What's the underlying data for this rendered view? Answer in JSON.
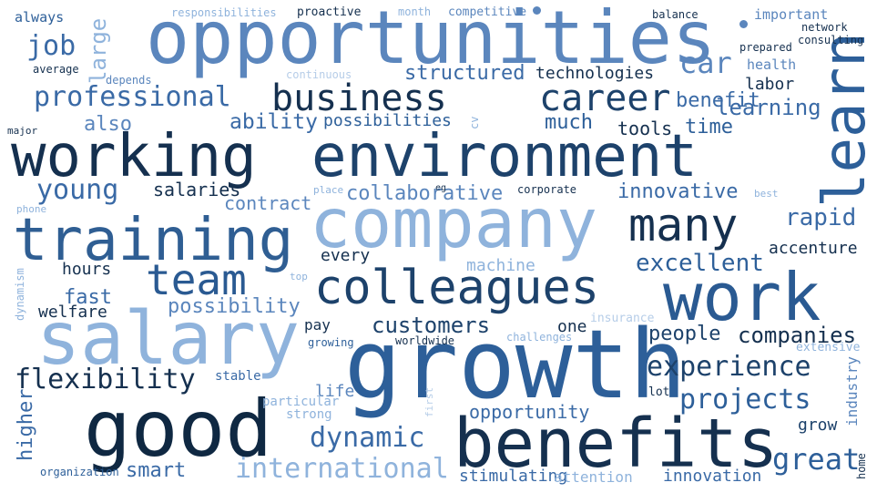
{
  "palette": [
    "#0f2a4a",
    "#1d4a7e",
    "#2f6aa6",
    "#5b8ec8",
    "#8db4dd",
    "#b9d3ee"
  ],
  "words": [
    {
      "id": "opportunities",
      "text": "opportunities",
      "color": "#5b86bd"
    },
    {
      "id": "working",
      "text": "working",
      "color": "#15304f"
    },
    {
      "id": "environment",
      "text": "environment",
      "color": "#1d426b"
    },
    {
      "id": "company",
      "text": "company",
      "color": "#8fb3dc"
    },
    {
      "id": "training",
      "text": "training",
      "color": "#2f5e93"
    },
    {
      "id": "salary",
      "text": "salary",
      "color": "#8fb3dc"
    },
    {
      "id": "growth",
      "text": "growth",
      "color": "#2d5f99"
    },
    {
      "id": "good",
      "text": "good",
      "color": "#0f2842"
    },
    {
      "id": "benefits",
      "text": "benefits",
      "color": "#15304f"
    },
    {
      "id": "work",
      "text": "work",
      "color": "#2a5a92"
    },
    {
      "id": "colleagues",
      "text": "colleagues",
      "color": "#1d426b"
    },
    {
      "id": "business",
      "text": "business",
      "color": "#15304f"
    },
    {
      "id": "career",
      "text": "career",
      "color": "#1d426b"
    },
    {
      "id": "learn",
      "text": "learn",
      "color": "#2d5f99"
    },
    {
      "id": "team",
      "text": "team",
      "color": "#2a5a92"
    },
    {
      "id": "many",
      "text": "many",
      "color": "#15304f"
    },
    {
      "id": "professional",
      "text": "professional",
      "color": "#3a6aa6"
    },
    {
      "id": "flexibility",
      "text": "flexibility",
      "color": "#15304f"
    },
    {
      "id": "experience",
      "text": "experience",
      "color": "#1d426b"
    },
    {
      "id": "projects",
      "text": "projects",
      "color": "#2d5f99"
    },
    {
      "id": "international",
      "text": "international",
      "color": "#8fb3dc"
    },
    {
      "id": "dynamic",
      "text": "dynamic",
      "color": "#3a6aa6"
    },
    {
      "id": "great",
      "text": "great",
      "color": "#2d5f99"
    },
    {
      "id": "young",
      "text": "young",
      "color": "#3a6aa6"
    },
    {
      "id": "job",
      "text": "job",
      "color": "#3a6aa6"
    },
    {
      "id": "large",
      "text": "large",
      "color": "#8fb3dc"
    },
    {
      "id": "always",
      "text": "always",
      "color": "#2d5f99"
    },
    {
      "id": "also",
      "text": "also",
      "color": "#5b86bd"
    },
    {
      "id": "car",
      "text": "car",
      "color": "#5b86bd"
    },
    {
      "id": "structured",
      "text": "structured",
      "color": "#3a6aa6"
    },
    {
      "id": "technologies",
      "text": "technologies",
      "color": "#15304f"
    },
    {
      "id": "benefit",
      "text": "benefit",
      "color": "#3a6aa6"
    },
    {
      "id": "labor",
      "text": "labor",
      "color": "#15304f"
    },
    {
      "id": "learning",
      "text": "learning",
      "color": "#3a6aa6"
    },
    {
      "id": "ability",
      "text": "ability",
      "color": "#3a6aa6"
    },
    {
      "id": "possibilities",
      "text": "possibilities",
      "color": "#2d5f99"
    },
    {
      "id": "much",
      "text": "much",
      "color": "#2d5f99"
    },
    {
      "id": "time",
      "text": "time",
      "color": "#2d5f99"
    },
    {
      "id": "tools",
      "text": "tools",
      "color": "#15304f"
    },
    {
      "id": "salaries",
      "text": "salaries",
      "color": "#15304f"
    },
    {
      "id": "collaborative",
      "text": "collaborative",
      "color": "#5b86bd"
    },
    {
      "id": "innovative",
      "text": "innovative",
      "color": "#3a6aa6"
    },
    {
      "id": "contract",
      "text": "contract",
      "color": "#5b86bd"
    },
    {
      "id": "rapid",
      "text": "rapid",
      "color": "#3a6aa6"
    },
    {
      "id": "accenture",
      "text": "accenture",
      "color": "#15304f"
    },
    {
      "id": "every",
      "text": "every",
      "color": "#15304f"
    },
    {
      "id": "hours",
      "text": "hours",
      "color": "#15304f"
    },
    {
      "id": "machine",
      "text": "machine",
      "color": "#8fb3dc"
    },
    {
      "id": "excellent",
      "text": "excellent",
      "color": "#2d5f99"
    },
    {
      "id": "fast",
      "text": "fast",
      "color": "#3a6aa6"
    },
    {
      "id": "possibility",
      "text": "possibility",
      "color": "#5b86bd"
    },
    {
      "id": "welfare",
      "text": "welfare",
      "color": "#15304f"
    },
    {
      "id": "customers",
      "text": "customers",
      "color": "#1d426b"
    },
    {
      "id": "one",
      "text": "one",
      "color": "#15304f"
    },
    {
      "id": "people",
      "text": "people",
      "color": "#1d426b"
    },
    {
      "id": "companies",
      "text": "companies",
      "color": "#15304f"
    },
    {
      "id": "opportunity",
      "text": "opportunity",
      "color": "#3a6aa6"
    },
    {
      "id": "smart",
      "text": "smart",
      "color": "#3a6aa6"
    },
    {
      "id": "grow",
      "text": "grow",
      "color": "#1d426b"
    },
    {
      "id": "innovation",
      "text": "innovation",
      "color": "#3a6aa6"
    },
    {
      "id": "stimulating",
      "text": "stimulating",
      "color": "#3a6aa6"
    },
    {
      "id": "attention",
      "text": "attention",
      "color": "#8fb3dc"
    },
    {
      "id": "organization",
      "text": "organization",
      "color": "#2d5f99"
    },
    {
      "id": "life",
      "text": "life",
      "color": "#5b86bd"
    },
    {
      "id": "strong",
      "text": "strong",
      "color": "#8fb3dc"
    },
    {
      "id": "particular",
      "text": "particular",
      "color": "#8fb3dc"
    },
    {
      "id": "stable",
      "text": "stable",
      "color": "#3a6aa6"
    },
    {
      "id": "pay",
      "text": "pay",
      "color": "#15304f"
    },
    {
      "id": "growing",
      "text": "growing",
      "color": "#2d5f99"
    },
    {
      "id": "worldwide",
      "text": "worldwide",
      "color": "#15304f"
    },
    {
      "id": "challenges",
      "text": "challenges",
      "color": "#8fb3dc"
    },
    {
      "id": "insurance",
      "text": "insurance",
      "color": "#b6cde8"
    },
    {
      "id": "extensive",
      "text": "extensive",
      "color": "#8fb3dc"
    },
    {
      "id": "lot",
      "text": "lot",
      "color": "#15304f"
    },
    {
      "id": "responsibilities",
      "text": "responsibilities",
      "color": "#8fb3dc"
    },
    {
      "id": "proactive",
      "text": "proactive",
      "color": "#15304f"
    },
    {
      "id": "month",
      "text": "month",
      "color": "#8fb3dc"
    },
    {
      "id": "competitive",
      "text": "competitive",
      "color": "#5b86bd"
    },
    {
      "id": "balance",
      "text": "balance",
      "color": "#15304f"
    },
    {
      "id": "important",
      "text": "important",
      "color": "#5b86bd"
    },
    {
      "id": "network",
      "text": "network",
      "color": "#15304f"
    },
    {
      "id": "prepared",
      "text": "prepared",
      "color": "#15304f"
    },
    {
      "id": "consulting",
      "text": "consulting",
      "color": "#15304f"
    },
    {
      "id": "average",
      "text": "average",
      "color": "#15304f"
    },
    {
      "id": "depends",
      "text": "depends",
      "color": "#5b86bd"
    },
    {
      "id": "continuous",
      "text": "continuous",
      "color": "#b6cde8"
    },
    {
      "id": "health",
      "text": "health",
      "color": "#5b86bd"
    },
    {
      "id": "major",
      "text": "major",
      "color": "#15304f"
    },
    {
      "id": "cv",
      "text": "cv",
      "color": "#8fb3dc"
    },
    {
      "id": "eg",
      "text": "eg",
      "color": "#15304f"
    },
    {
      "id": "place",
      "text": "place",
      "color": "#8fb3dc"
    },
    {
      "id": "corporate",
      "text": "corporate",
      "color": "#15304f"
    },
    {
      "id": "best",
      "text": "best",
      "color": "#8fb3dc"
    },
    {
      "id": "phone",
      "text": "phone",
      "color": "#8fb3dc"
    },
    {
      "id": "dynamism",
      "text": "dynamism",
      "color": "#8fb3dc"
    },
    {
      "id": "top",
      "text": "top",
      "color": "#8fb3dc"
    },
    {
      "id": "higher",
      "text": "higher",
      "color": "#3a6aa6"
    },
    {
      "id": "industry",
      "text": "industry",
      "color": "#5b86bd"
    },
    {
      "id": "home",
      "text": "home",
      "color": "#15304f"
    },
    {
      "id": "first",
      "text": "first",
      "color": "#b6cde8"
    }
  ]
}
